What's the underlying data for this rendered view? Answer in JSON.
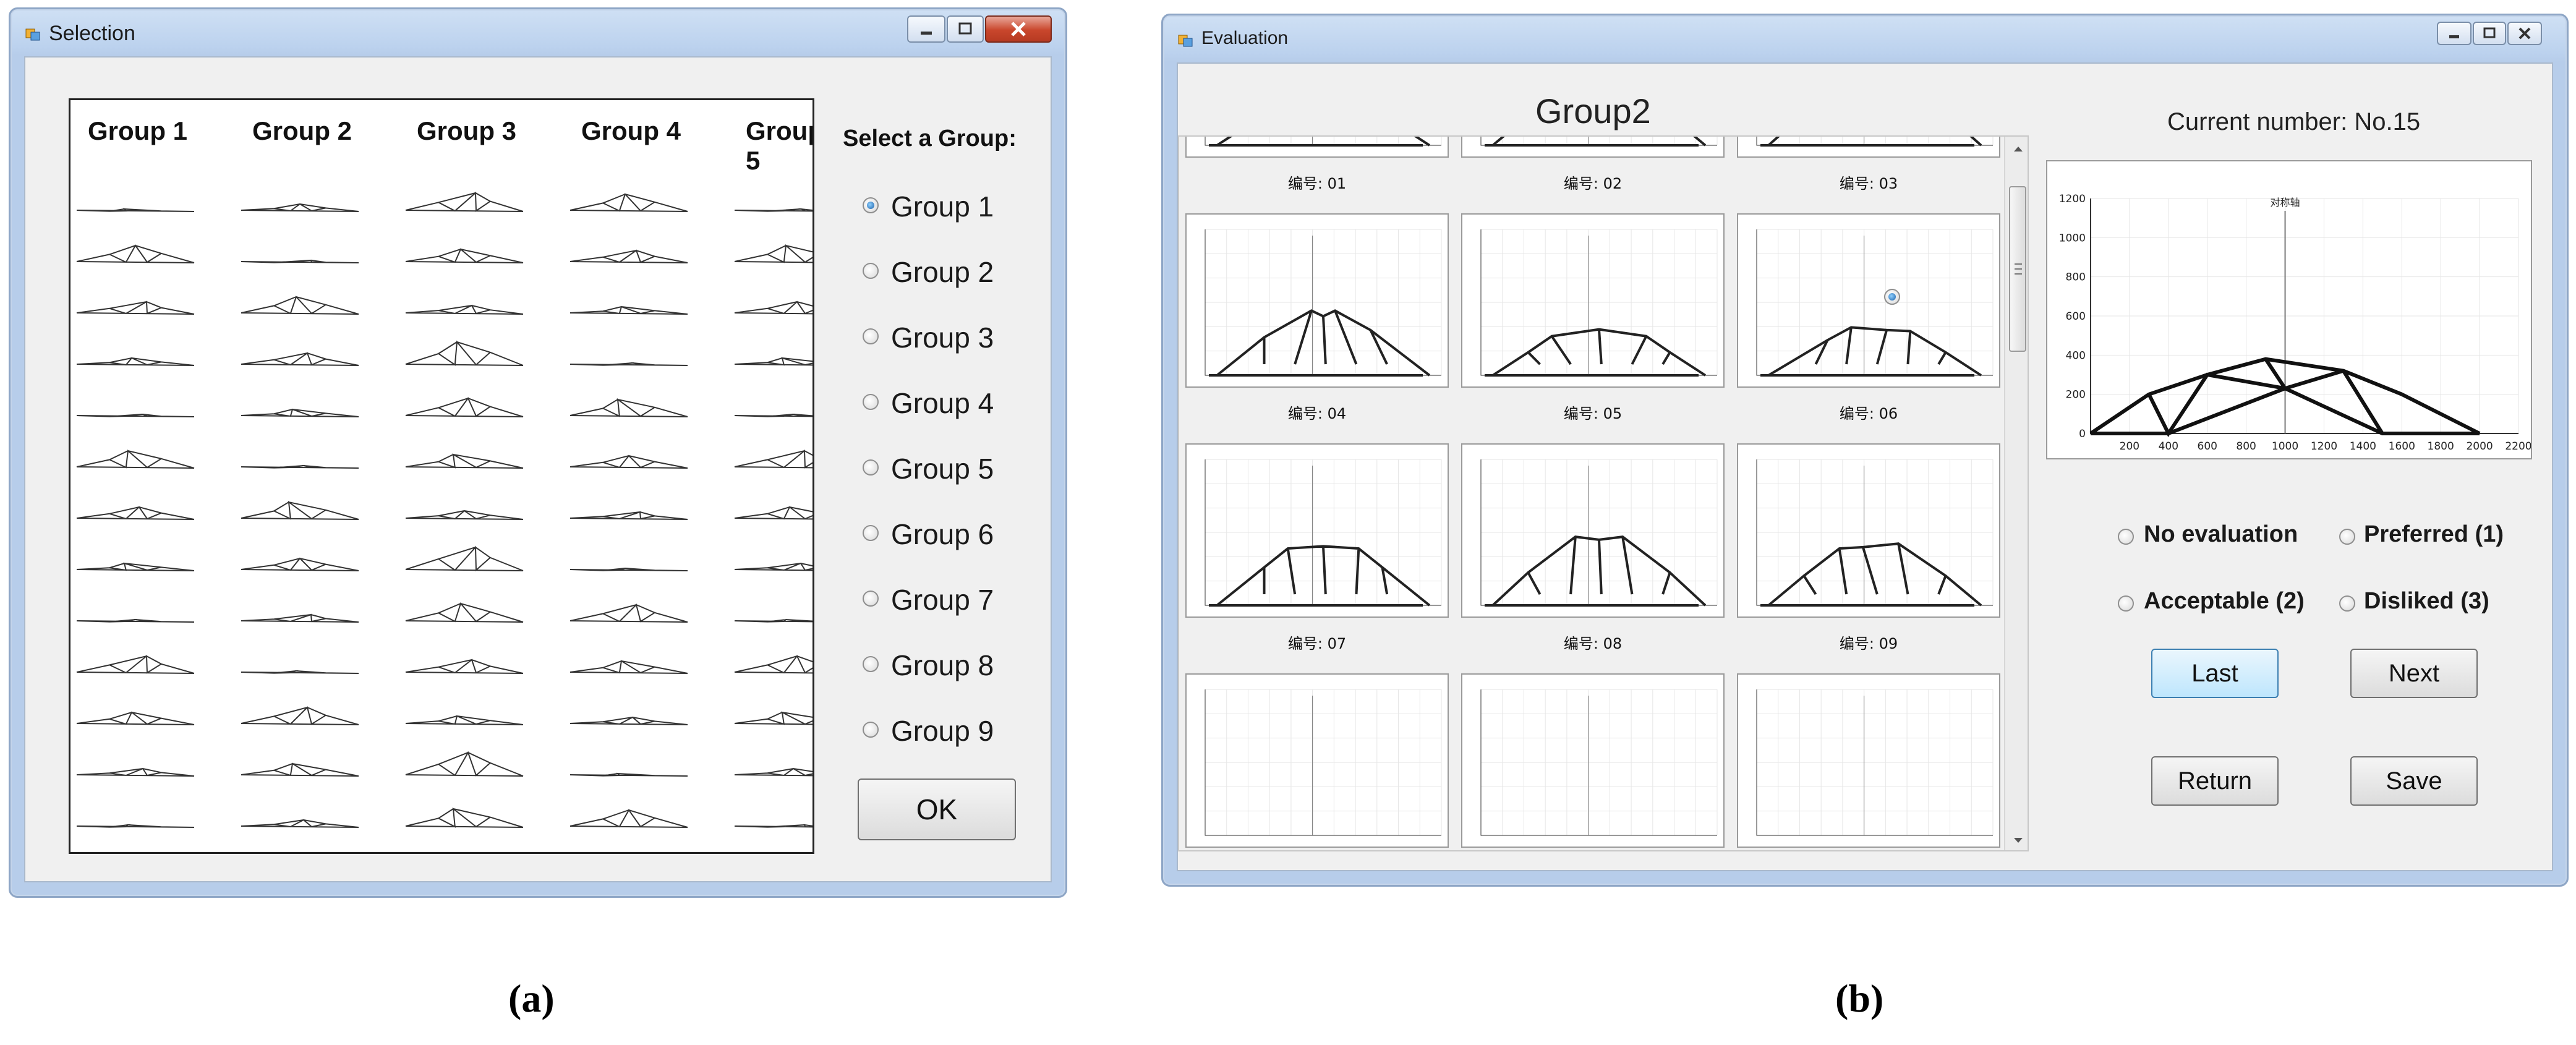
{
  "selection_window": {
    "title": "Selection",
    "group_headers": [
      "Group 1",
      "Group 2",
      "Group 3",
      "Group 4",
      "Group 5"
    ],
    "select_label": "Select a Group:",
    "radio_options": [
      {
        "label": "Group 1",
        "checked": true
      },
      {
        "label": "Group 2",
        "checked": false
      },
      {
        "label": "Group 3",
        "checked": false
      },
      {
        "label": "Group 4",
        "checked": false
      },
      {
        "label": "Group 5",
        "checked": false
      },
      {
        "label": "Group 6",
        "checked": false
      },
      {
        "label": "Group 7",
        "checked": false
      },
      {
        "label": "Group 8",
        "checked": false
      },
      {
        "label": "Group 9",
        "checked": false
      }
    ],
    "ok_label": "OK"
  },
  "evaluation_window": {
    "title": "Evaluation",
    "group_title": "Group2",
    "current_number": "Current number: No.15",
    "thumbnails": [
      {
        "label": "编号: 01"
      },
      {
        "label": "编号: 02"
      },
      {
        "label": "编号: 03"
      },
      {
        "label": "编号: 04"
      },
      {
        "label": "编号: 05"
      },
      {
        "label": "编号: 06"
      },
      {
        "label": "编号: 07"
      },
      {
        "label": "编号: 08"
      },
      {
        "label": "编号: 09"
      }
    ],
    "preview": {
      "symmetry_label": "对称轴",
      "y_ticks": [
        "1200",
        "1000",
        "800",
        "600",
        "400",
        "200",
        "0"
      ],
      "x_ticks": [
        "200",
        "400",
        "600",
        "800",
        "1000",
        "1200",
        "1400",
        "1600",
        "1800",
        "2000",
        "2200"
      ]
    },
    "evaluation_options": [
      {
        "label": "No evaluation"
      },
      {
        "label": "Preferred (1)"
      },
      {
        "label": "Acceptable (2)"
      },
      {
        "label": "Disliked (3)"
      }
    ],
    "buttons": {
      "last": "Last",
      "next": "Next",
      "return": "Return",
      "save": "Save"
    }
  },
  "captions": {
    "a": "(a)",
    "b": "(b)"
  },
  "colors": {
    "window_frame": "#b7cdea",
    "client_bg": "#f0f0f0",
    "radio_selected": "#1a5fa8"
  }
}
